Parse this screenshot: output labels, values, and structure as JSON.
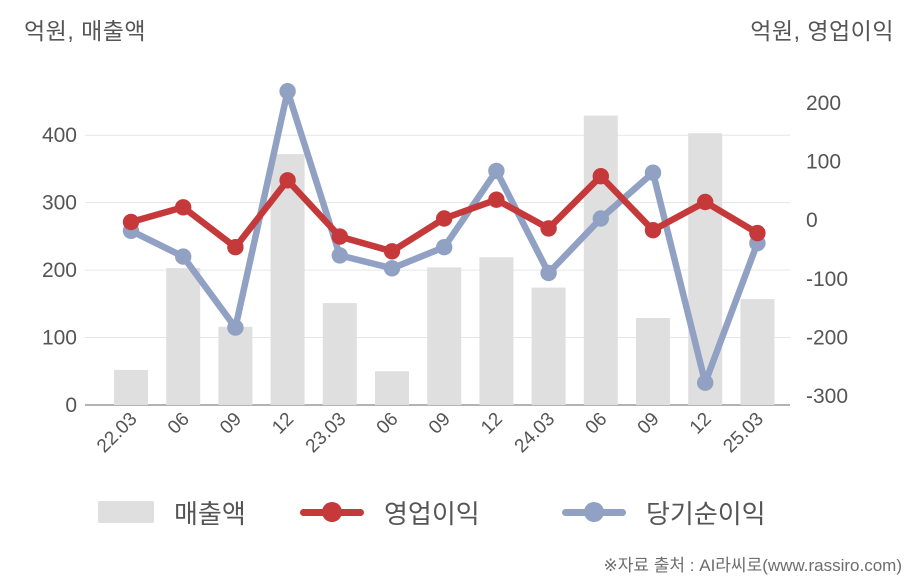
{
  "header": {
    "left_label": "억원, 매출액",
    "right_label": "억원, 영업이익"
  },
  "footer": {
    "source_note": "※자료 출처 : AI라씨로(www.rassiro.com)"
  },
  "colors": {
    "grid": "#e6e6e6",
    "axis_line": "#9a9a9a",
    "tick_text": "#555555",
    "revenue_bar": "#dfdfdf",
    "operating_profit": "#c5393a",
    "net_income": "#91a1c3"
  },
  "chart_data": {
    "type": "bar+line",
    "title": "",
    "categories": [
      "22.03",
      "06",
      "09",
      "12",
      "23.03",
      "06",
      "09",
      "12",
      "24.03",
      "06",
      "09",
      "12",
      "25.03"
    ],
    "series": [
      {
        "id": "revenue",
        "name": "매출액",
        "type": "bar",
        "axis": "left",
        "color": "#dfdfdf",
        "values": [
          52,
          203,
          116,
          372,
          151,
          50,
          204,
          219,
          174,
          429,
          129,
          403,
          157
        ]
      },
      {
        "id": "operating_profit",
        "name": "영업이익",
        "type": "line",
        "axis": "right",
        "color": "#c5393a",
        "values": [
          -3,
          22,
          -46,
          68,
          -28,
          -53,
          3,
          35,
          -14,
          75,
          -17,
          31,
          -22
        ]
      },
      {
        "id": "net_income",
        "name": "당기순이익",
        "type": "line",
        "axis": "right",
        "color": "#91a1c3",
        "values": [
          -18,
          -62,
          -183,
          220,
          -60,
          -82,
          -46,
          84,
          -90,
          3,
          81,
          -277,
          -39
        ]
      }
    ],
    "left_axis": {
      "label": "억원, 매출액",
      "unit": "억원",
      "ticks": [
        400,
        300,
        200,
        100,
        0
      ],
      "range": [
        0,
        467
      ]
    },
    "right_axis": {
      "label": "억원, 영업이익",
      "unit": "억원",
      "ticks": [
        200,
        100,
        0,
        -100,
        -200,
        -300
      ],
      "range": [
        -315,
        222
      ]
    },
    "grid": true,
    "legend_position": "bottom",
    "x_tick_rotation": -45
  }
}
